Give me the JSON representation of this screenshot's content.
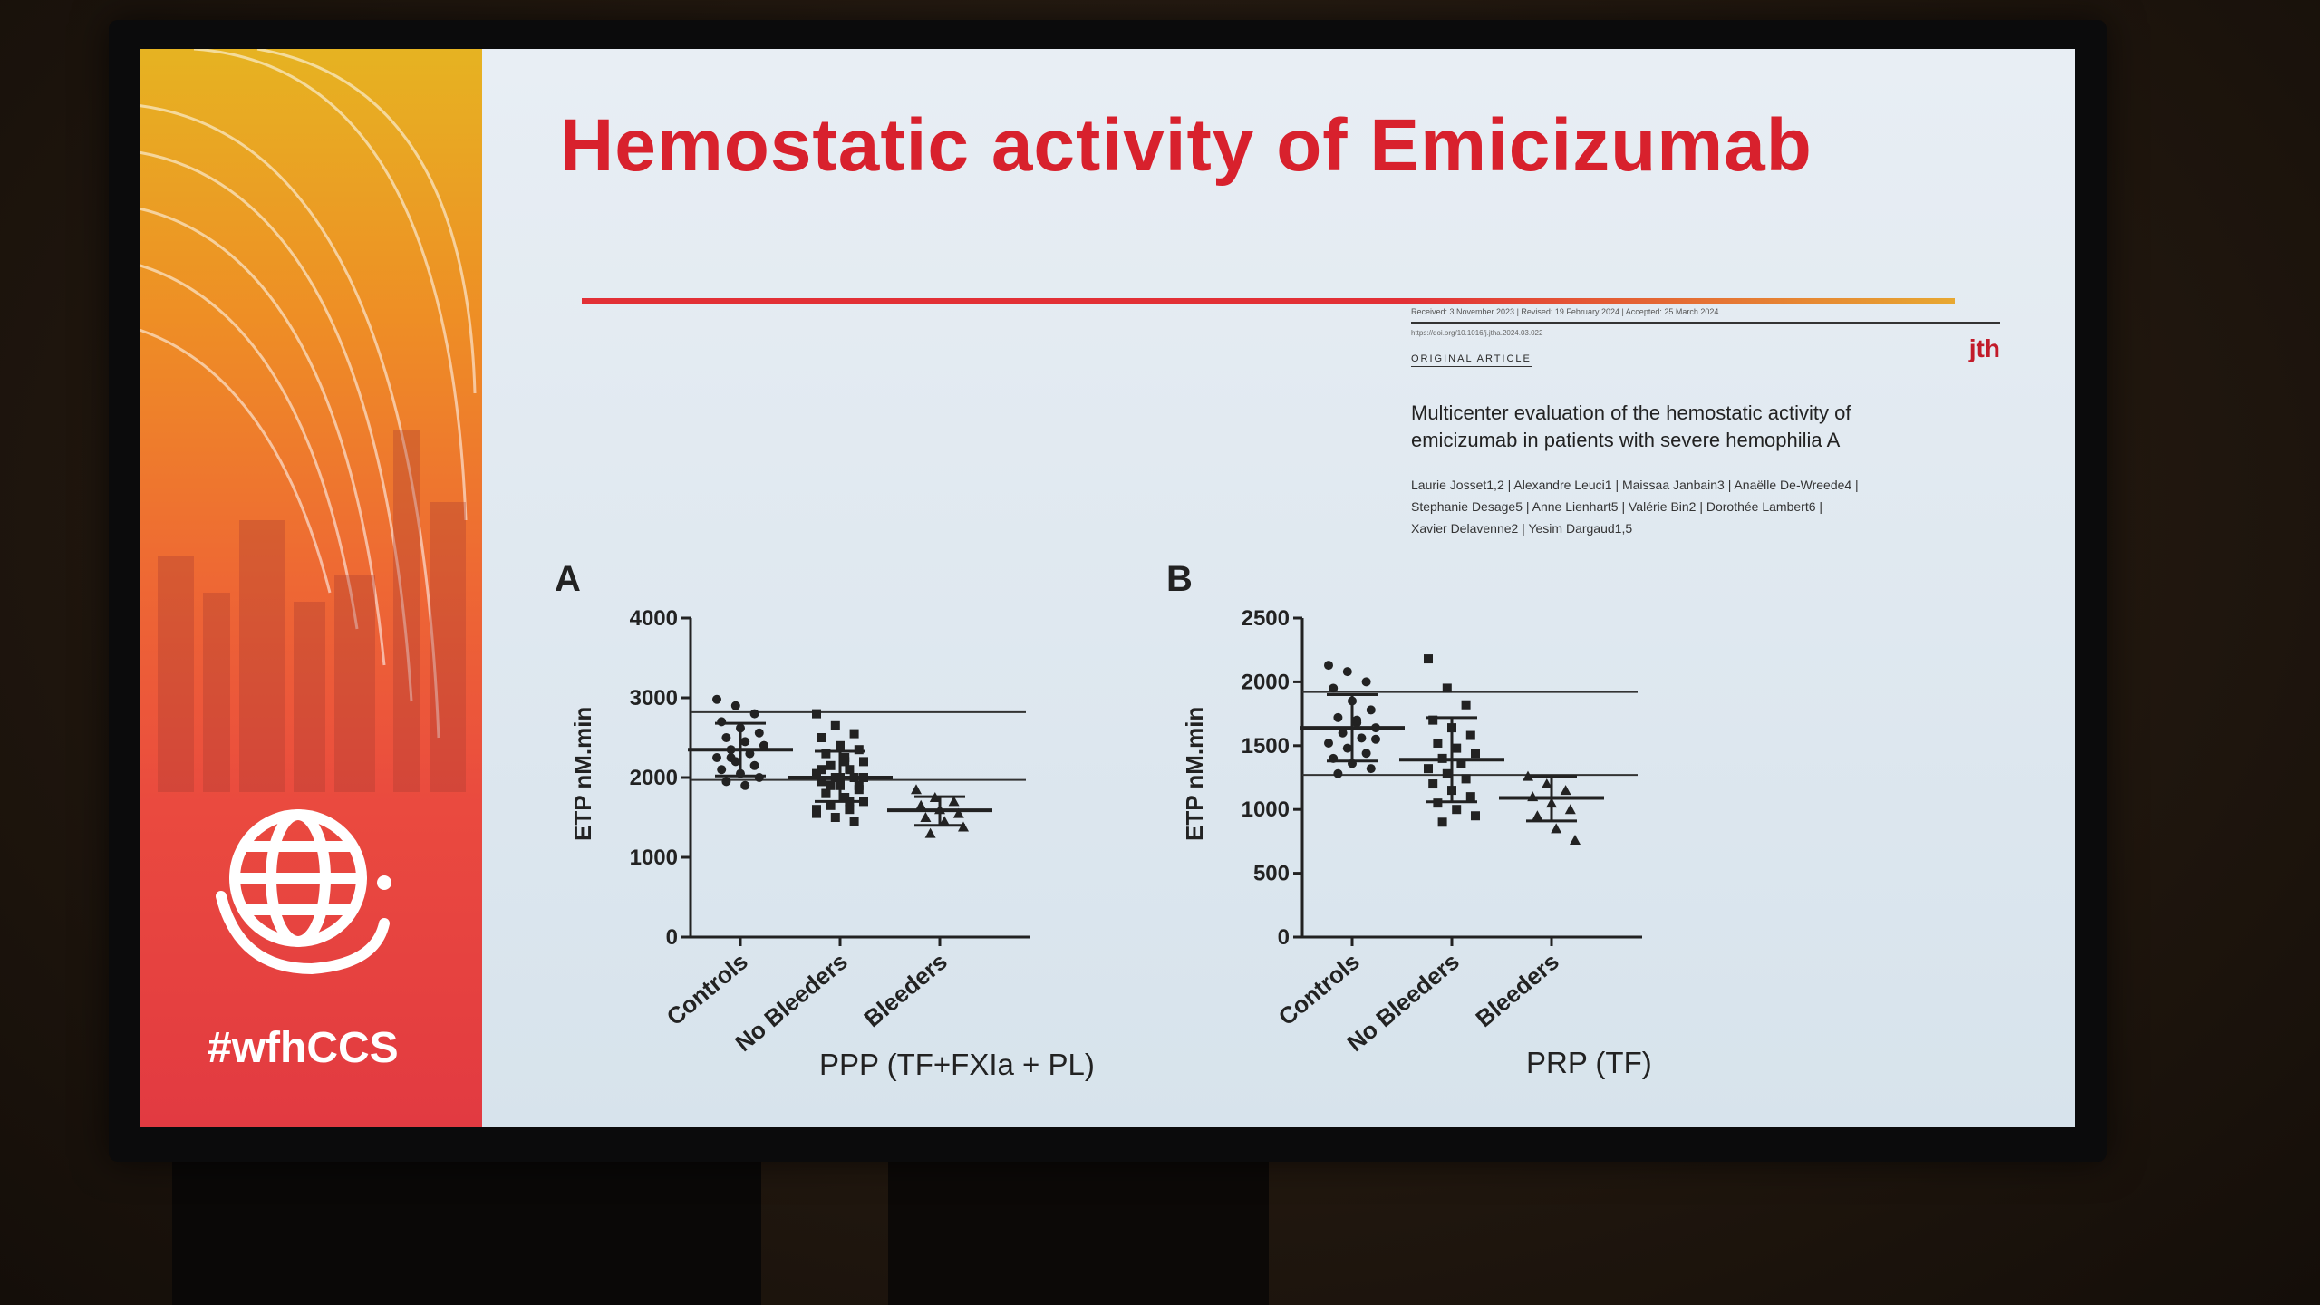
{
  "slide": {
    "title": "Hemostatic activity of Emicizumab",
    "hashtag": "#wfhCCS",
    "logo_icon": "globe-hand-icon"
  },
  "article": {
    "meta": "Received: 3 November 2023 | Revised: 19 February 2024 | Accepted: 25 March 2024",
    "doi": "https://doi.org/10.1016/j.jtha.2024.03.022",
    "section": "ORIGINAL ARTICLE",
    "journal": "jth",
    "title_line1": "Multicenter evaluation of the hemostatic activity of",
    "title_line2": "emicizumab in patients with severe hemophilia A",
    "authors_line1": "Laurie Josset1,2 | Alexandre Leuci1 | Maissaa Janbain3 | Anaëlle De-Wreede4 |",
    "authors_line2": "Stephanie Desage5 | Anne Lienhart5 | Valérie Bin2 | Dorothée Lambert6 |",
    "authors_line3": "Xavier Delavenne2 | Yesim Dargaud1,5"
  },
  "chart_data": [
    {
      "type": "scatter",
      "panel": "A",
      "ylabel": "ETP nM.min",
      "caption": "PPP  (TF+FXIa + PL)",
      "ylim": [
        0,
        4000
      ],
      "yticks": [
        0,
        1000,
        2000,
        3000,
        4000
      ],
      "ytick_labels": [
        "0",
        "1000",
        "2000",
        "3000",
        "4000"
      ],
      "categories": [
        "Controls",
        "No Bleeders",
        "Bleeders"
      ],
      "reference_lines": [
        2820,
        1970
      ],
      "series": [
        {
          "category": "Controls",
          "marker": "circle",
          "mean": 2350,
          "sd_low": 2020,
          "sd_high": 2680,
          "values": [
            2980,
            2900,
            2800,
            2700,
            2620,
            2560,
            2500,
            2450,
            2400,
            2350,
            2300,
            2250,
            2200,
            2150,
            2100,
            2050,
            2000,
            1950,
            1900,
            2400,
            2250
          ]
        },
        {
          "category": "No Bleeders",
          "marker": "square",
          "mean": 2000,
          "sd_low": 1700,
          "sd_high": 2330,
          "values": [
            2800,
            2650,
            2550,
            2500,
            2400,
            2350,
            2300,
            2250,
            2200,
            2150,
            2100,
            2050,
            2000,
            2000,
            1950,
            1900,
            1850,
            1800,
            1750,
            1700,
            1650,
            1600,
            1550,
            1500,
            1450,
            2100,
            2000,
            1900,
            1800,
            2200,
            2000,
            1900,
            1700,
            1600
          ]
        },
        {
          "category": "Bleeders",
          "marker": "triangle",
          "mean": 1590,
          "sd_low": 1400,
          "sd_high": 1760,
          "values": [
            1850,
            1750,
            1700,
            1650,
            1600,
            1550,
            1500,
            1450,
            1380,
            1300
          ]
        }
      ]
    },
    {
      "type": "scatter",
      "panel": "B",
      "ylabel": "ETP nM.min",
      "caption": "PRP (TF)",
      "ylim": [
        0,
        2500
      ],
      "yticks": [
        0,
        500,
        1000,
        1500,
        2000,
        2500
      ],
      "ytick_labels": [
        "0",
        "500",
        "1000",
        "1500",
        "2000",
        "2500"
      ],
      "categories": [
        "Controls",
        "No Bleeders",
        "Bleeders"
      ],
      "reference_lines": [
        1920,
        1270
      ],
      "series": [
        {
          "category": "Controls",
          "marker": "circle",
          "mean": 1640,
          "sd_low": 1380,
          "sd_high": 1900,
          "values": [
            2130,
            2080,
            2000,
            1950,
            1850,
            1780,
            1720,
            1680,
            1640,
            1600,
            1560,
            1520,
            1480,
            1440,
            1400,
            1360,
            1320,
            1280,
            1700,
            1550
          ]
        },
        {
          "category": "No Bleeders",
          "marker": "square",
          "mean": 1390,
          "sd_low": 1060,
          "sd_high": 1720,
          "values": [
            2180,
            1950,
            1820,
            1700,
            1640,
            1580,
            1520,
            1480,
            1440,
            1400,
            1360,
            1320,
            1280,
            1240,
            1200,
            1150,
            1100,
            1050,
            1000,
            950,
            900
          ]
        },
        {
          "category": "Bleeders",
          "marker": "triangle",
          "mean": 1090,
          "sd_low": 910,
          "sd_high": 1260,
          "values": [
            1260,
            1200,
            1150,
            1100,
            1050,
            1000,
            950,
            850,
            760
          ]
        }
      ]
    }
  ]
}
